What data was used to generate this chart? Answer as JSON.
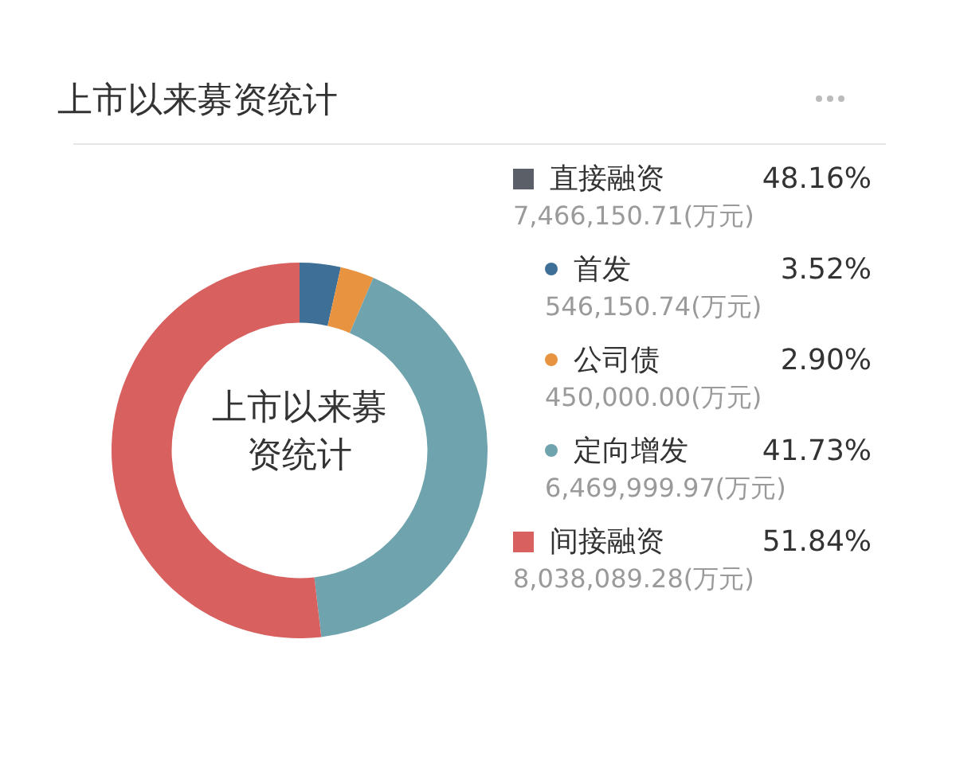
{
  "chart_data": {
    "type": "donut",
    "title": "上市以来募资统计",
    "categories": [
      "首发",
      "公司债",
      "定向增发",
      "间接融资"
    ],
    "values": [
      3.52,
      2.9,
      41.73,
      51.84
    ],
    "colors": [
      "#3e6f97",
      "#e8933f",
      "#6fa3ad",
      "#d8605f"
    ],
    "value_labels": [
      "3.52%",
      "2.90%",
      "41.73%",
      "51.84%"
    ],
    "legend": "right",
    "annotations": [
      "上市以来募资统计",
      "直接融资",
      "48.16%",
      "7,466,150.71(万元)",
      {
        "text": "546,150.74(万元)",
        "x": "首发"
      },
      {
        "text": "450,000.00(万元)",
        "x": "公司债"
      },
      {
        "text": "6,469,999.97(万元)",
        "x": "定向增发"
      },
      {
        "text": "8,038,089.28(万元)",
        "x": "间接融资"
      }
    ]
  }
}
